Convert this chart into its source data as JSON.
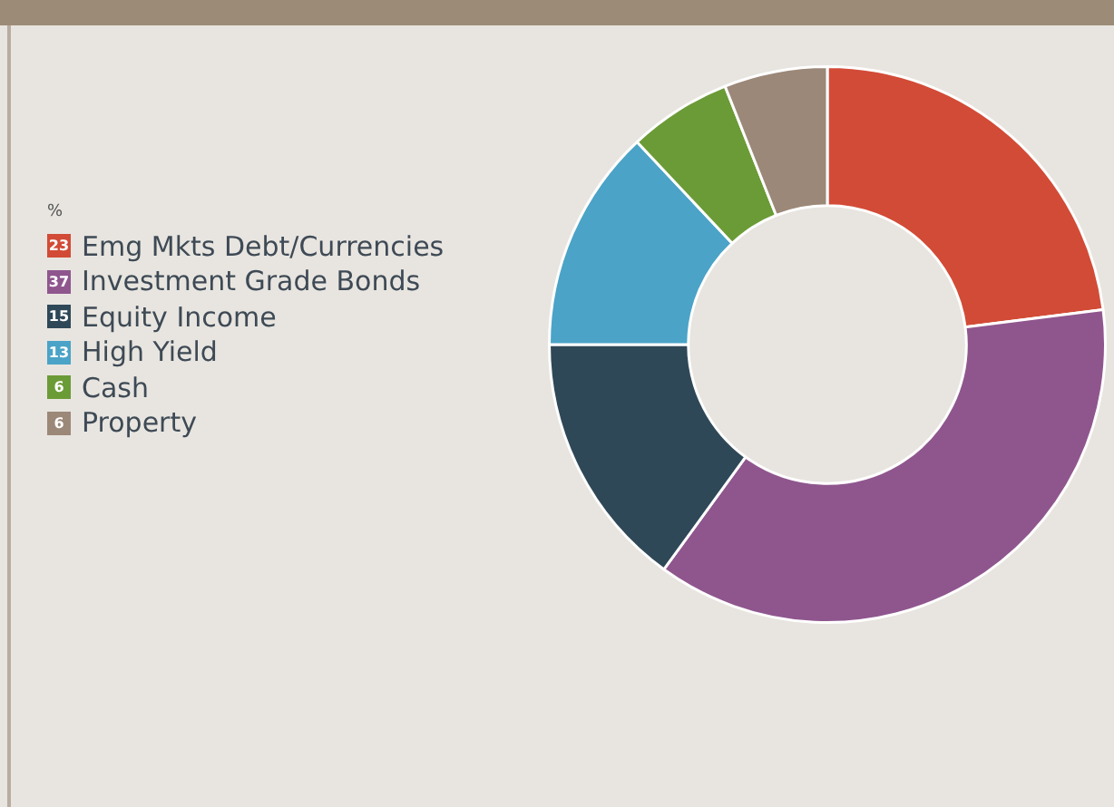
{
  "chart_data": {
    "type": "donut",
    "legend_title": "%",
    "legend": "left",
    "data_labels": true,
    "categories": [
      "Emg Mkts Debt/Currencies",
      "Investment Grade Bonds",
      "Equity Income",
      "High Yield",
      "Cash",
      "Property"
    ],
    "values": [
      23,
      37,
      15,
      13,
      6,
      6
    ],
    "colors": [
      "#d24b36",
      "#8f568e",
      "#2f4858",
      "#4ba3c7",
      "#6b9b36",
      "#9c8878"
    ]
  }
}
